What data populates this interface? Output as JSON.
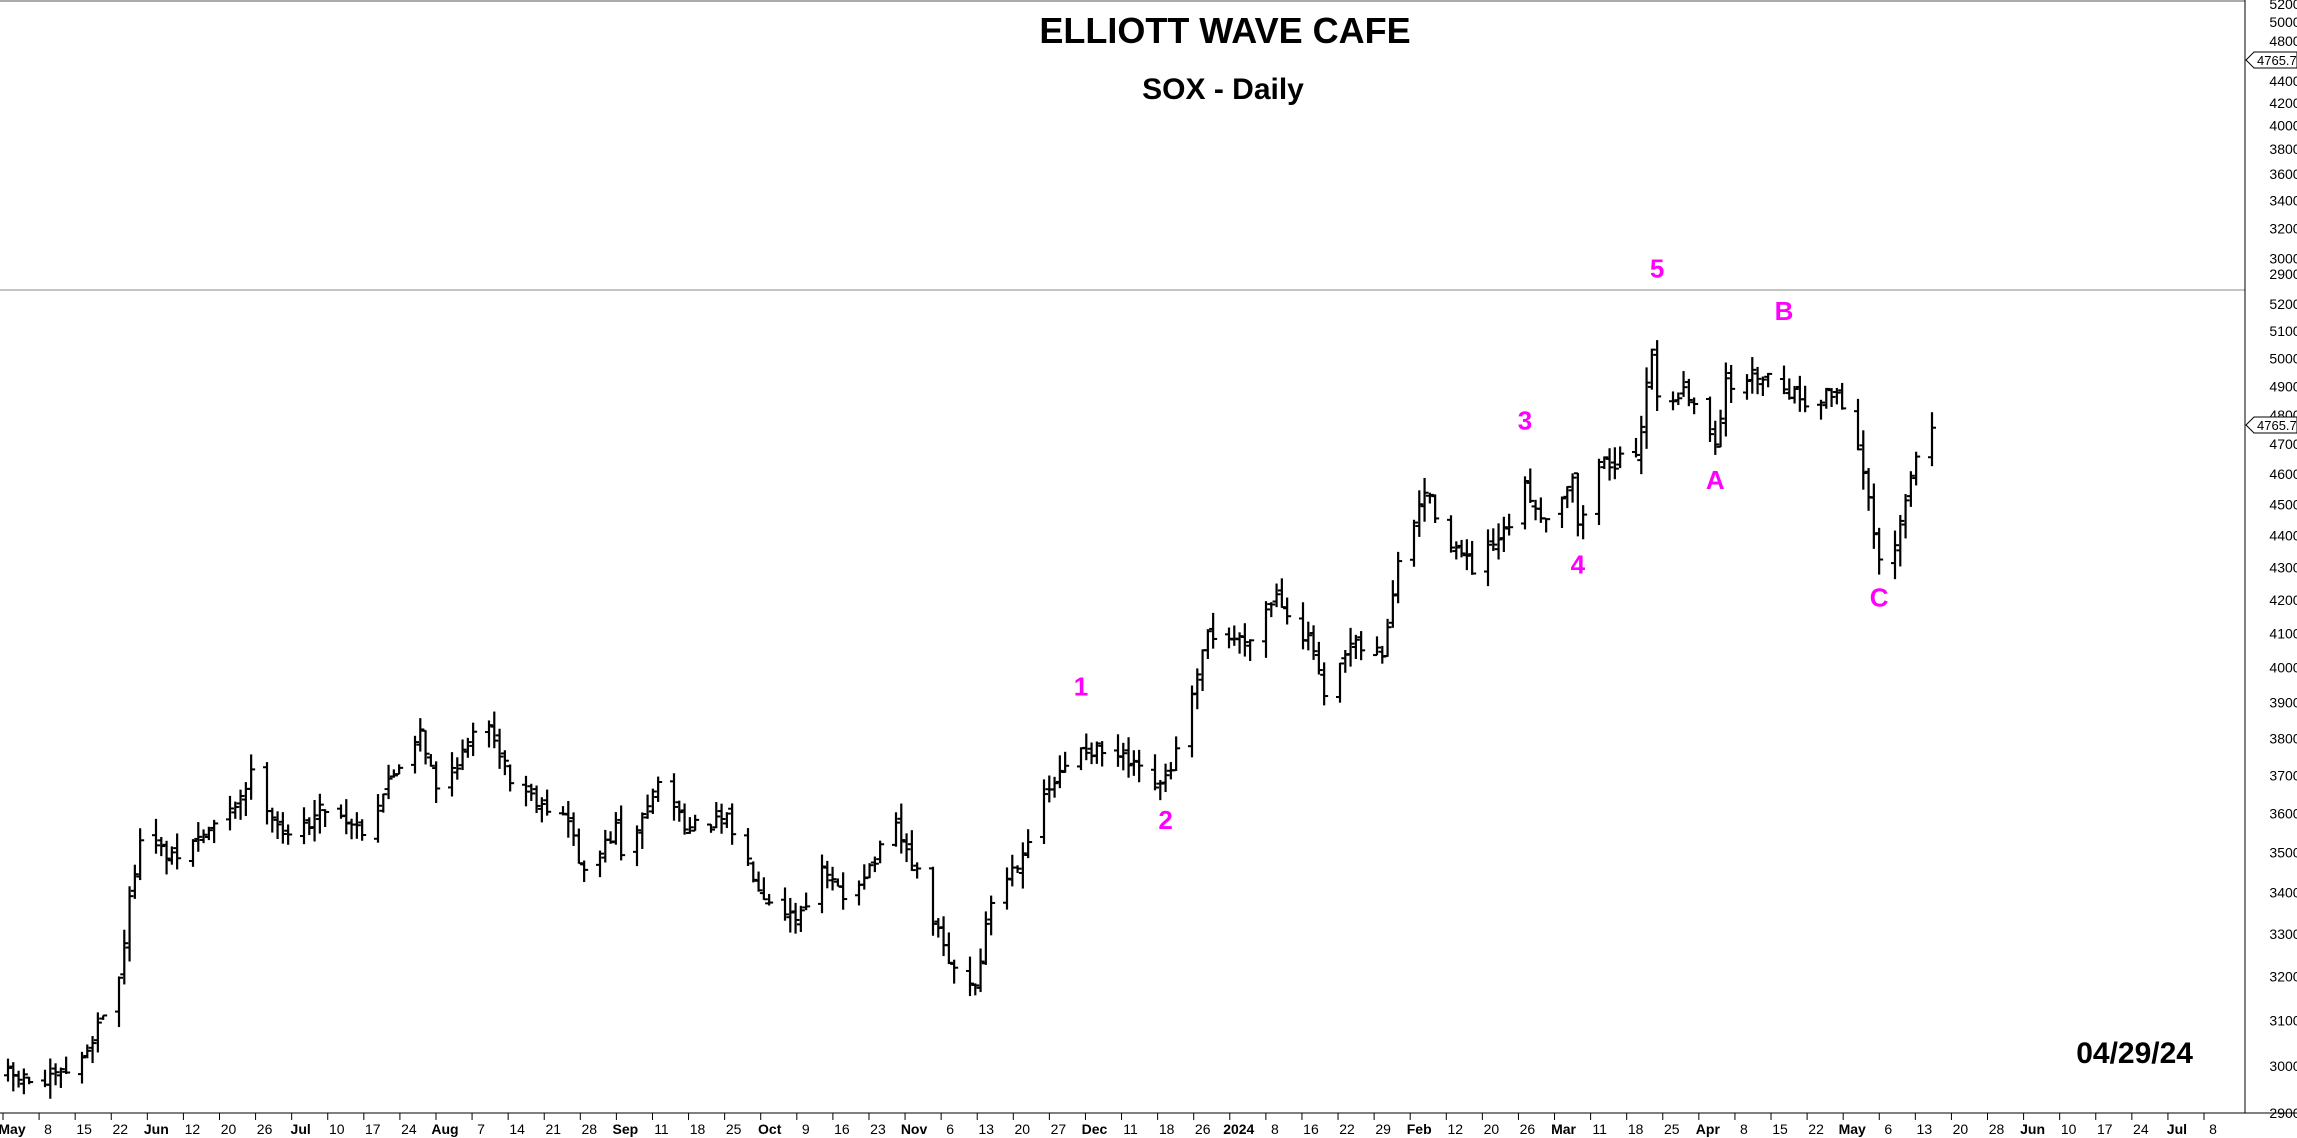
{
  "header": {
    "title": "ELLIOTT WAVE CAFE",
    "subtitle": "SOX - Daily"
  },
  "date_stamp": "04/29/24",
  "colors": {
    "bars": "#000000",
    "wave_labels": "#ff00ff",
    "background": "#ffffff"
  },
  "chart_data": {
    "type": "ohlc",
    "title": "ELLIOTT WAVE CAFE",
    "subtitle": "SOX - Daily",
    "y_scale": "log",
    "grid": false,
    "xlabel": "",
    "ylabel": "",
    "last_value_label": "4765.79",
    "upper_panel": {
      "ylim": [
        2900,
        5200
      ],
      "y_ticks": [
        2900,
        3000,
        3200,
        3400,
        3600,
        3800,
        4000,
        4200,
        4400,
        4600,
        4800,
        5000,
        5200
      ]
    },
    "main_panel": {
      "ylim": [
        2900,
        5200
      ],
      "y_ticks": [
        2900,
        3000,
        3100,
        3200,
        3300,
        3400,
        3500,
        3600,
        3700,
        3800,
        3900,
        4000,
        4100,
        4200,
        4300,
        4400,
        4500,
        4600,
        4700,
        4800,
        4900,
        5000,
        5100,
        5200
      ]
    },
    "x_tick_labels": [
      "May",
      "8",
      "15",
      "22",
      "Jun",
      "12",
      "20",
      "26",
      "Jul",
      "10",
      "17",
      "24",
      "Aug",
      "7",
      "14",
      "21",
      "28",
      "Sep",
      "11",
      "18",
      "25",
      "Oct",
      "9",
      "16",
      "23",
      "Nov",
      "6",
      "13",
      "20",
      "27",
      "Dec",
      "11",
      "18",
      "26",
      "2024",
      "8",
      "16",
      "22",
      "29",
      "Feb",
      "12",
      "20",
      "26",
      "Mar",
      "11",
      "18",
      "25",
      "Apr",
      "8",
      "15",
      "22",
      "May",
      "6",
      "13",
      "20",
      "28",
      "Jun",
      "10",
      "17",
      "24",
      "Jul",
      "8"
    ],
    "x_tick_bold": [
      "May",
      "Jun",
      "Jul",
      "Aug",
      "Sep",
      "Oct",
      "Nov",
      "Dec",
      "2024",
      "Feb",
      "Mar",
      "Apr",
      "Jun",
      "Jul"
    ],
    "anchors": [
      {
        "date": "2023-05-01",
        "close": 2980
      },
      {
        "date": "2023-05-08",
        "close": 2960
      },
      {
        "date": "2023-05-15",
        "close": 3010
      },
      {
        "date": "2023-05-22",
        "close": 3200
      },
      {
        "date": "2023-05-26",
        "close": 3550
      },
      {
        "date": "2023-06-01",
        "close": 3480
      },
      {
        "date": "2023-06-12",
        "close": 3600
      },
      {
        "date": "2023-06-16",
        "close": 3700
      },
      {
        "date": "2023-06-23",
        "close": 3530
      },
      {
        "date": "2023-06-30",
        "close": 3620
      },
      {
        "date": "2023-07-07",
        "close": 3560
      },
      {
        "date": "2023-07-12",
        "close": 3680
      },
      {
        "date": "2023-07-18",
        "close": 3830
      },
      {
        "date": "2023-07-21",
        "close": 3660
      },
      {
        "date": "2023-07-28",
        "close": 3800
      },
      {
        "date": "2023-07-31",
        "close": 3850
      },
      {
        "date": "2023-08-04",
        "close": 3690
      },
      {
        "date": "2023-08-15",
        "close": 3580
      },
      {
        "date": "2023-08-18",
        "close": 3440
      },
      {
        "date": "2023-08-24",
        "close": 3560
      },
      {
        "date": "2023-08-25",
        "close": 3480
      },
      {
        "date": "2023-09-01",
        "close": 3680
      },
      {
        "date": "2023-09-07",
        "close": 3560
      },
      {
        "date": "2023-09-14",
        "close": 3580
      },
      {
        "date": "2023-09-21",
        "close": 3400
      },
      {
        "date": "2023-09-27",
        "close": 3340
      },
      {
        "date": "2023-10-02",
        "close": 3450
      },
      {
        "date": "2023-10-06",
        "close": 3390
      },
      {
        "date": "2023-10-12",
        "close": 3480
      },
      {
        "date": "2023-10-16",
        "close": 3560
      },
      {
        "date": "2023-10-20",
        "close": 3440
      },
      {
        "date": "2023-10-26",
        "close": 3230
      },
      {
        "date": "2023-10-31",
        "close": 3180
      },
      {
        "date": "2023-11-03",
        "close": 3380
      },
      {
        "date": "2023-11-08",
        "close": 3480
      },
      {
        "date": "2023-11-14",
        "close": 3660
      },
      {
        "date": "2023-11-20",
        "close": 3780
      },
      {
        "date": "2023-11-28",
        "close": 3740
      },
      {
        "date": "2023-12-05",
        "close": 3660
      },
      {
        "date": "2023-12-08",
        "close": 3760
      },
      {
        "date": "2023-12-12",
        "close": 3960
      },
      {
        "date": "2023-12-14",
        "close": 4100
      },
      {
        "date": "2023-12-21",
        "close": 4080
      },
      {
        "date": "2023-12-27",
        "close": 4220
      },
      {
        "date": "2024-01-03",
        "close": 4050
      },
      {
        "date": "2024-01-05",
        "close": 3900
      },
      {
        "date": "2024-01-10",
        "close": 4060
      },
      {
        "date": "2024-01-16",
        "close": 4040
      },
      {
        "date": "2024-01-19",
        "close": 4300
      },
      {
        "date": "2024-01-24",
        "close": 4540
      },
      {
        "date": "2024-01-29",
        "close": 4380
      },
      {
        "date": "2024-02-02",
        "close": 4290
      },
      {
        "date": "2024-02-08",
        "close": 4400
      },
      {
        "date": "2024-02-12",
        "close": 4550
      },
      {
        "date": "2024-02-16",
        "close": 4450
      },
      {
        "date": "2024-02-21",
        "close": 4600
      },
      {
        "date": "2024-02-22",
        "close": 4420
      },
      {
        "date": "2024-02-26",
        "close": 4640
      },
      {
        "date": "2024-03-04",
        "close": 4640
      },
      {
        "date": "2024-03-07",
        "close": 5050
      },
      {
        "date": "2024-03-08",
        "close": 4850
      },
      {
        "date": "2024-03-13",
        "close": 4880
      },
      {
        "date": "2024-03-19",
        "close": 4720
      },
      {
        "date": "2024-03-21",
        "close": 4900
      },
      {
        "date": "2024-03-28",
        "close": 4950
      },
      {
        "date": "2024-04-05",
        "close": 4850
      },
      {
        "date": "2024-04-11",
        "close": 4880
      },
      {
        "date": "2024-04-15",
        "close": 4700
      },
      {
        "date": "2024-04-19",
        "close": 4300
      },
      {
        "date": "2024-04-22",
        "close": 4360
      },
      {
        "date": "2024-04-26",
        "close": 4660
      },
      {
        "date": "2024-04-29",
        "close": 4766
      }
    ],
    "wave_labels": [
      {
        "label": "1",
        "date": "2023-11-20",
        "price": 3920
      },
      {
        "label": "2",
        "date": "2023-12-06",
        "price": 3560
      },
      {
        "label": "3",
        "date": "2024-02-12",
        "price": 4750
      },
      {
        "label": "4",
        "date": "2024-02-22",
        "price": 4280
      },
      {
        "label": "5",
        "date": "2024-03-08",
        "price": 5300
      },
      {
        "label": "A",
        "date": "2024-03-19",
        "price": 4550
      },
      {
        "label": "B",
        "date": "2024-04-01",
        "price": 5140
      },
      {
        "label": "C",
        "date": "2024-04-19",
        "price": 4180
      }
    ]
  }
}
